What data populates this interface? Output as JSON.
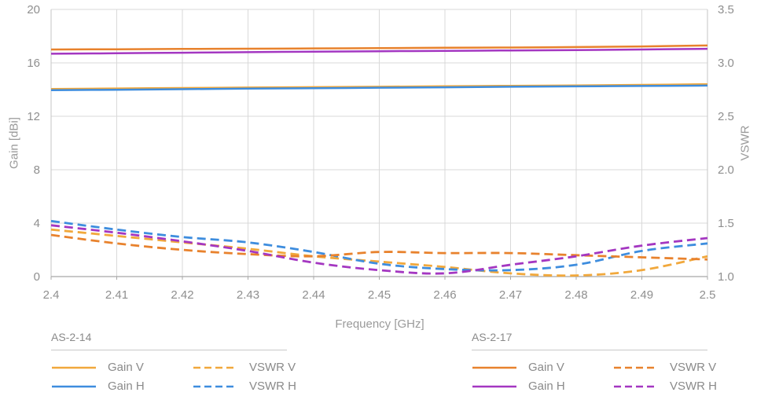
{
  "chart_data": {
    "type": "line",
    "xlabel": "Frequency [GHz]",
    "ylabel_left": "Gain [dBi]",
    "ylabel_right": "VSWR",
    "grid": true,
    "x": [
      2.4,
      2.41,
      2.42,
      2.43,
      2.44,
      2.45,
      2.46,
      2.47,
      2.48,
      2.49,
      2.5
    ],
    "x_tick_labels": [
      "2.4",
      "2.41",
      "2.42",
      "2.43",
      "2.44",
      "2.45",
      "2.46",
      "2.47",
      "2.48",
      "2.49",
      "2.5"
    ],
    "gain_axis": {
      "min": 0,
      "max": 20,
      "ticks": [
        0,
        4,
        8,
        12,
        16,
        20
      ],
      "tick_labels": [
        "0",
        "4",
        "8",
        "12",
        "16",
        "20"
      ]
    },
    "vswr_axis": {
      "min": 1.0,
      "max": 3.5,
      "ticks": [
        1.0,
        1.5,
        2.0,
        2.5,
        3.0,
        3.5
      ],
      "tick_labels": [
        "1.0",
        "1.5",
        "2.0",
        "2.5",
        "3.0",
        "3.5"
      ]
    },
    "colors": {
      "grid": "#d9d9d9",
      "axis_side": "#c6c6c6",
      "axis_bottom": "#a8a8a8",
      "tick_text": "#8f8f8f"
    },
    "groups": [
      {
        "name": "AS-2-14",
        "series": [
          {
            "label": "Gain V",
            "axis": "gain",
            "style": "solid",
            "color": "#f1a83c",
            "values": [
              14.05,
              14.08,
              14.12,
              14.15,
              14.18,
              14.21,
              14.25,
              14.28,
              14.31,
              14.35,
              14.4
            ]
          },
          {
            "label": "Gain H",
            "axis": "gain",
            "style": "solid",
            "color": "#3e8dde",
            "values": [
              13.95,
              13.99,
              14.03,
              14.07,
              14.1,
              14.14,
              14.17,
              14.21,
              14.24,
              14.27,
              14.3
            ]
          },
          {
            "label": "VSWR V",
            "axis": "vswr",
            "style": "dashed",
            "color": "#f1a83c",
            "values": [
              1.44,
              1.38,
              1.32,
              1.26,
              1.19,
              1.14,
              1.09,
              1.03,
              1.01,
              1.06,
              1.19
            ]
          },
          {
            "label": "VSWR H",
            "axis": "vswr",
            "style": "dashed",
            "color": "#3e8dde",
            "values": [
              1.52,
              1.44,
              1.37,
              1.32,
              1.23,
              1.12,
              1.07,
              1.06,
              1.11,
              1.24,
              1.31
            ]
          }
        ]
      },
      {
        "name": "AS-2-17",
        "series": [
          {
            "label": "Gain V",
            "axis": "gain",
            "style": "solid",
            "color": "#e8822d",
            "values": [
              17.0,
              17.02,
              17.04,
              17.06,
              17.08,
              17.1,
              17.13,
              17.15,
              17.18,
              17.23,
              17.3
            ]
          },
          {
            "label": "Gain H",
            "axis": "gain",
            "style": "solid",
            "color": "#a437c1",
            "values": [
              16.68,
              16.72,
              16.76,
              16.8,
              16.84,
              16.87,
              16.9,
              16.93,
              16.96,
              17.0,
              17.05
            ]
          },
          {
            "label": "VSWR V",
            "axis": "vswr",
            "style": "dashed",
            "color": "#e8822d",
            "values": [
              1.39,
              1.31,
              1.25,
              1.21,
              1.19,
              1.23,
              1.22,
              1.22,
              1.2,
              1.18,
              1.16
            ]
          },
          {
            "label": "VSWR H",
            "axis": "vswr",
            "style": "dashed",
            "color": "#a437c1",
            "values": [
              1.48,
              1.41,
              1.33,
              1.24,
              1.13,
              1.06,
              1.03,
              1.11,
              1.19,
              1.29,
              1.36
            ]
          }
        ]
      }
    ]
  }
}
